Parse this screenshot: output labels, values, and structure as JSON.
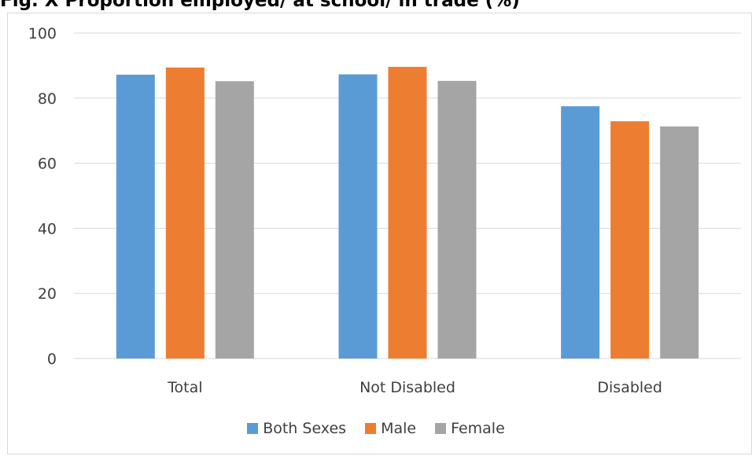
{
  "chart_data": {
    "type": "bar",
    "title": "",
    "xlabel": "",
    "ylabel": "",
    "categories": [
      "Total",
      "Not Disabled",
      "Disabled"
    ],
    "series": [
      {
        "name": "Both Sexes",
        "color": "#5b9bd5",
        "values": [
          87.2,
          87.3,
          77.5
        ]
      },
      {
        "name": "Male",
        "color": "#ed7d31",
        "values": [
          89.4,
          89.6,
          72.9
        ]
      },
      {
        "name": "Female",
        "color": "#a5a5a5",
        "values": [
          85.2,
          85.3,
          71.3
        ]
      }
    ],
    "ylim": [
      0,
      100
    ],
    "yticks": [
      "0",
      "20",
      "40",
      "60",
      "80",
      "100"
    ],
    "grid": true,
    "legend_position": "bottom"
  },
  "header": {
    "title_text": "Fig. X Proportion employed/ at school/ in trade (%)"
  }
}
